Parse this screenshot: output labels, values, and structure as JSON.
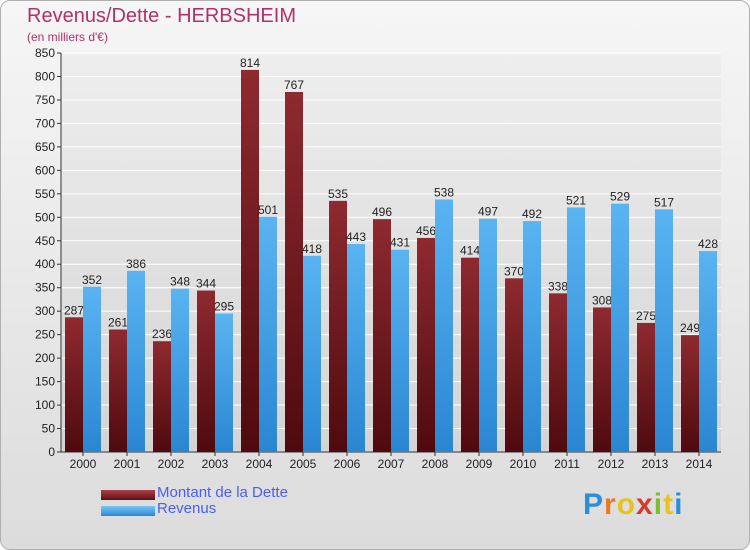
{
  "header": {
    "title": "Revenus/Dette - HERBSHEIM",
    "subtitle": "(en milliers d'€)"
  },
  "colors": {
    "dette": "#7b1f25",
    "revenus": "#3aa0ea",
    "grid": "#ffffff",
    "title": "#b3306a",
    "legend_text": "#4a5ef0"
  },
  "chart_data": {
    "type": "bar",
    "title": "Revenus/Dette - HERBSHEIM",
    "subtitle": "(en milliers d'€)",
    "categories": [
      "2000",
      "2001",
      "2002",
      "2003",
      "2004",
      "2005",
      "2006",
      "2007",
      "2008",
      "2009",
      "2010",
      "2011",
      "2012",
      "2013",
      "2014"
    ],
    "series": [
      {
        "name": "Montant de la Dette",
        "values": [
          287,
          261,
          236,
          344,
          814,
          767,
          535,
          496,
          456,
          414,
          370,
          338,
          308,
          275,
          249
        ]
      },
      {
        "name": "Revenus",
        "values": [
          352,
          386,
          348,
          295,
          501,
          418,
          443,
          431,
          538,
          497,
          492,
          521,
          529,
          517,
          428
        ]
      }
    ],
    "yticks": [
      "0",
      "50",
      "100",
      "150",
      "200",
      "250",
      "300",
      "350",
      "400",
      "450",
      "500",
      "550",
      "600",
      "650",
      "700",
      "750",
      "800",
      "850"
    ],
    "ylim": [
      0,
      850
    ],
    "grid": true,
    "legend_position": "bottom-left"
  },
  "legend": {
    "dette_label": "Montant de la Dette",
    "revenus_label": "Revenus"
  },
  "logo": {
    "text": "Proxiti",
    "letters": [
      "P",
      "r",
      "o",
      "x",
      "i",
      "t",
      "i"
    ],
    "letter_colors": [
      "#2a8fd8",
      "#e87a1e",
      "#e8c21e",
      "#d83a2a",
      "#7bbf2a",
      "#e8c21e",
      "#2a8fd8"
    ]
  }
}
